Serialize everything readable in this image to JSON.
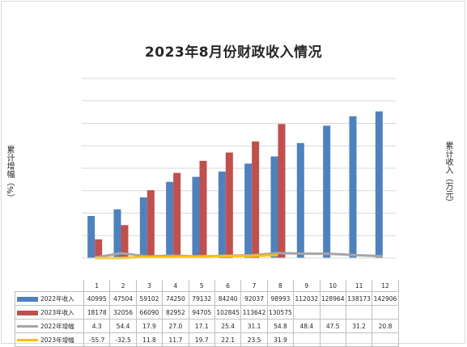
{
  "chart_data": {
    "type": "bar",
    "title": "2023年8月份财政收入情况",
    "ylabel_left": "累计增幅（%）",
    "ylabel_right": "累计收入（万元）",
    "categories": [
      "1",
      "2",
      "3",
      "4",
      "5",
      "6",
      "7",
      "8",
      "9",
      "10",
      "11",
      "12"
    ],
    "series": [
      {
        "name": "2022年收入",
        "kind": "bar",
        "color": "#4f81bd",
        "values": [
          40995,
          47504,
          59102,
          74250,
          79132,
          84240,
          92037,
          98993,
          112032,
          128964,
          138173,
          142906
        ]
      },
      {
        "name": "2023年收入",
        "kind": "bar",
        "color": "#c0504d",
        "values": [
          18178,
          32056,
          66090,
          82952,
          94705,
          102845,
          113642,
          130575,
          null,
          null,
          null,
          null
        ]
      },
      {
        "name": "2022年增幅",
        "kind": "line",
        "color": "#a5a5a5",
        "values": [
          4.3,
          54.4,
          17.9,
          27.0,
          17.1,
          25.4,
          31.1,
          54.8,
          48.4,
          47.5,
          31.2,
          20.8
        ]
      },
      {
        "name": "2023年增幅",
        "kind": "line",
        "color": "#ffc000",
        "values": [
          -55.7,
          -32.5,
          11.8,
          11.7,
          19.7,
          22.1,
          23.5,
          31.9,
          null,
          null,
          null,
          null
        ]
      }
    ],
    "table_values": [
      [
        "40995",
        "47504",
        "59102",
        "74250",
        "79132",
        "84240",
        "92037",
        "98993",
        "112032",
        "128964",
        "138173",
        "142906"
      ],
      [
        "18178",
        "32056",
        "66090",
        "82952",
        "94705",
        "102845",
        "113642",
        "130575",
        "",
        "",
        "",
        ""
      ],
      [
        "4.3",
        "54.4",
        "17.9",
        "27.0",
        "17.1",
        "25.4",
        "31.1",
        "54.8",
        "48.4",
        "47.5",
        "31.2",
        "20.8"
      ],
      [
        "-55.7",
        "-32.5",
        "11.8",
        "11.7",
        "19.7",
        "22.1",
        "23.5",
        "31.9",
        "",
        "",
        "",
        ""
      ]
    ],
    "ylim_revenue": [
      0,
      175000
    ],
    "ylim_growth": [
      0,
      2000
    ],
    "grid": true,
    "legend": "data-table"
  }
}
